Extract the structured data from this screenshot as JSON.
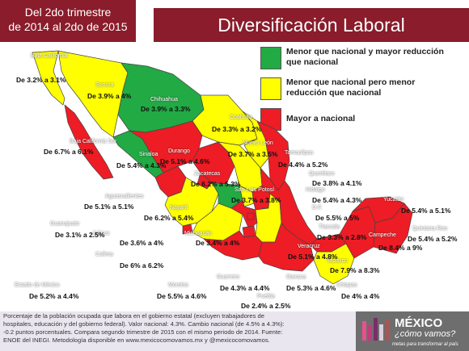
{
  "header": {
    "period_line1": "Del 2do trimestre",
    "period_line2": "de 2014 al 2do de 2015",
    "title": "Diversificación Laboral"
  },
  "legend": [
    {
      "color": "#22aa44",
      "text": "Menor que nacional y mayor reducción que nacional"
    },
    {
      "color": "#ffff00",
      "text": "Menor que nacional pero menor reducción que nacional"
    },
    {
      "color": "#ee1c24",
      "text": "Mayor a nacional"
    }
  ],
  "states": [
    {
      "name": "Baja California",
      "value": "De 3.2% a 3.1%",
      "category": "yellow"
    },
    {
      "name": "Sonora",
      "value": "De 3.9% a 4%",
      "category": "yellow"
    },
    {
      "name": "Chihuahua",
      "value": "De 3.9% a 3.3%",
      "category": "green"
    },
    {
      "name": "Coahuila",
      "value": "De 3.3% a 3.2%",
      "category": "yellow"
    },
    {
      "name": "Nuevo León",
      "value": "De 3.7% a 3.5%",
      "category": "yellow"
    },
    {
      "name": "Tamaulipas",
      "value": "De 4.4% a 5.2%",
      "category": "red"
    },
    {
      "name": "Baja California Sur",
      "value": "De 6.7% a 6.1%",
      "category": "red"
    },
    {
      "name": "Sinaloa",
      "value": "De 5.4% a 4.3%",
      "category": "green"
    },
    {
      "name": "Durango",
      "value": "De 5.1% a 4.6%",
      "category": "red"
    },
    {
      "name": "Zacatecas",
      "value": "De 6.2% a 5.3%",
      "category": "red"
    },
    {
      "name": "Querétaro",
      "value": "De 3.8% a 4.1%",
      "category": "yellow"
    },
    {
      "name": "San Luis Potosí",
      "value": "De 3.7% a 3.8%",
      "category": "yellow"
    },
    {
      "name": "Hidalgo",
      "value": "De 5.4% a 4.3%",
      "category": "red"
    },
    {
      "name": "Yucatán",
      "value": "De 5.4% a 5.1%",
      "category": "red"
    },
    {
      "name": "Aguascalientes",
      "value": "De 5.1% a 5.1%",
      "category": "red"
    },
    {
      "name": "Nayarit",
      "value": "De 6.2% a 5.4%",
      "category": "red"
    },
    {
      "name": "D.F.",
      "value": "De 5.5% a 5%",
      "category": "red"
    },
    {
      "name": "Tlaxcala",
      "value": "De 3.3% a 2.8%",
      "category": "green"
    },
    {
      "name": "Quintana Roo",
      "value": "De 5.4% a 5.2%",
      "category": "red"
    },
    {
      "name": "Guanajuato",
      "value": "De 3.1% a 2.5%",
      "category": "green"
    },
    {
      "name": "Jalisco",
      "value": "De 3.6% a 4%",
      "category": "yellow"
    },
    {
      "name": "Michoacán",
      "value": "De 3.4% a 4%",
      "category": "yellow"
    },
    {
      "name": "Campeche",
      "value": "De 8.4% a 9%",
      "category": "red"
    },
    {
      "name": "Veracruz",
      "value": "De 5.1% a 4.8%",
      "category": "red"
    },
    {
      "name": "Colima",
      "value": "De 6% a 6.2%",
      "category": "red"
    },
    {
      "name": "Tabasco",
      "value": "De 7.9% a 8.3%",
      "category": "red"
    },
    {
      "name": "Estado de México",
      "value": "De 5.2% a 4.4%",
      "category": "red"
    },
    {
      "name": "Morelos",
      "value": "De 5.5% a 4.6%",
      "category": "red"
    },
    {
      "name": "Guerrero",
      "value": "De 4.3% a 4.4%",
      "category": "red"
    },
    {
      "name": "Oaxaca",
      "value": "De 5.3% a 4.6%",
      "category": "red"
    },
    {
      "name": "Chiapas",
      "value": "De 4% a 4%",
      "category": "yellow"
    },
    {
      "name": "Puebla",
      "value": "De 2.4% a 2.5%",
      "category": "yellow"
    }
  ],
  "footer": {
    "line1": "Porcentaje de la población ocupada que labora en el gobierno estatal (excluyen trabajadores de",
    "line2": "hospitales, educación y del gobierno federal). Valor nacional: 4.3%. Cambio nacional (de 4.5% a 4.3%):",
    "line3": "-0.2 puntos porcentuales. Compara segundo trimestre de 2015 con el mismo periodo de 2014.  Fuente:",
    "line4": "ENOE del INEGI. Metodología disponible en www.mexicocomovamos.mx y @mexicocomovamos."
  },
  "logo": {
    "title": "MÉXICO",
    "subtitle": "¿cómo vamos?",
    "tagline": "metas para transformar al país"
  },
  "colors": {
    "green": "#22aa44",
    "yellow": "#ffff00",
    "red": "#ee1c24",
    "header": "#8a1c2b"
  }
}
